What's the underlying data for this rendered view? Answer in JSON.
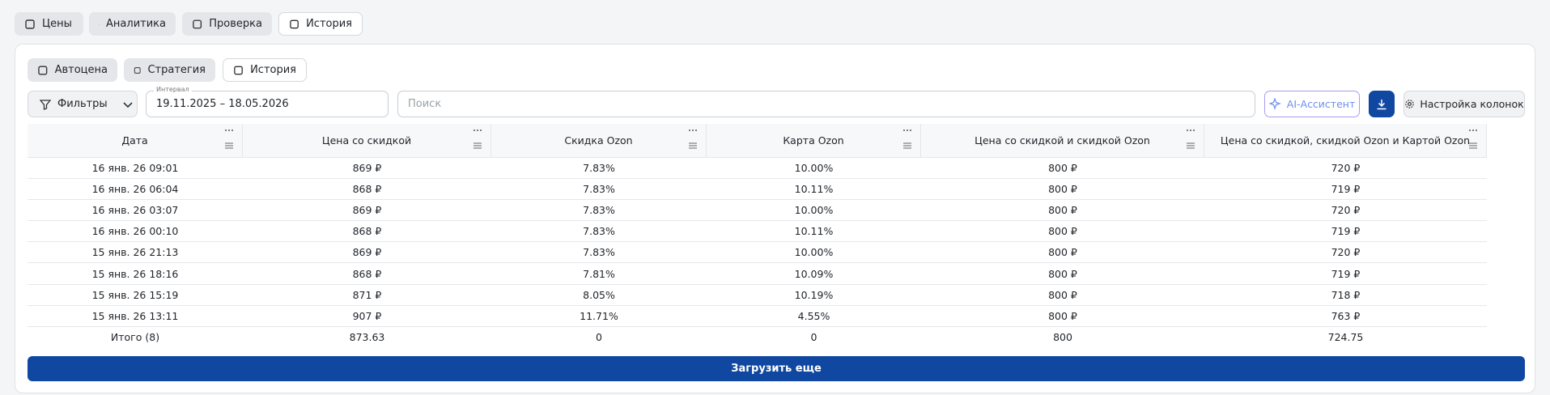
{
  "top_tabs": [
    "Цены",
    "Аналитика",
    "Проверка",
    "История"
  ],
  "sub_tabs": [
    "Автоцена",
    "Стратегия",
    "История"
  ],
  "toolbar": {
    "filters": "Фильтры",
    "interval_label": "Интервал",
    "interval": "19.11.2025 – 18.05.2026",
    "search_placeholder": "Поиск",
    "ai": "AI-Ассистент",
    "columns_settings": "Настройка колонок"
  },
  "table": {
    "columns": [
      "Дата",
      "Цена со скидкой",
      "Скидка Ozon",
      "Карта Ozon",
      "Цена со скидкой и скидкой Ozon",
      "Цена со скидкой, скидкой Ozon и Картой Ozon"
    ],
    "rows": [
      [
        "16 янв. 26 09:01",
        "869 ₽",
        "7.83%",
        "10.00%",
        "800 ₽",
        "720 ₽"
      ],
      [
        "16 янв. 26 06:04",
        "868 ₽",
        "7.83%",
        "10.11%",
        "800 ₽",
        "719 ₽"
      ],
      [
        "16 янв. 26 03:07",
        "869 ₽",
        "7.83%",
        "10.00%",
        "800 ₽",
        "720 ₽"
      ],
      [
        "16 янв. 26 00:10",
        "868 ₽",
        "7.83%",
        "10.11%",
        "800 ₽",
        "719 ₽"
      ],
      [
        "15 янв. 26 21:13",
        "869 ₽",
        "7.83%",
        "10.00%",
        "800 ₽",
        "720 ₽"
      ],
      [
        "15 янв. 26 18:16",
        "868 ₽",
        "7.81%",
        "10.09%",
        "800 ₽",
        "719 ₽"
      ],
      [
        "15 янв. 26 15:19",
        "871 ₽",
        "8.05%",
        "10.19%",
        "800 ₽",
        "718 ₽"
      ],
      [
        "15 янв. 26 13:11",
        "907 ₽",
        "11.71%",
        "4.55%",
        "800 ₽",
        "763 ₽"
      ]
    ],
    "total": [
      "Итого (8)",
      "873.63",
      "0",
      "0",
      "800",
      "724.75"
    ]
  },
  "load_more": "Загрузить еще"
}
